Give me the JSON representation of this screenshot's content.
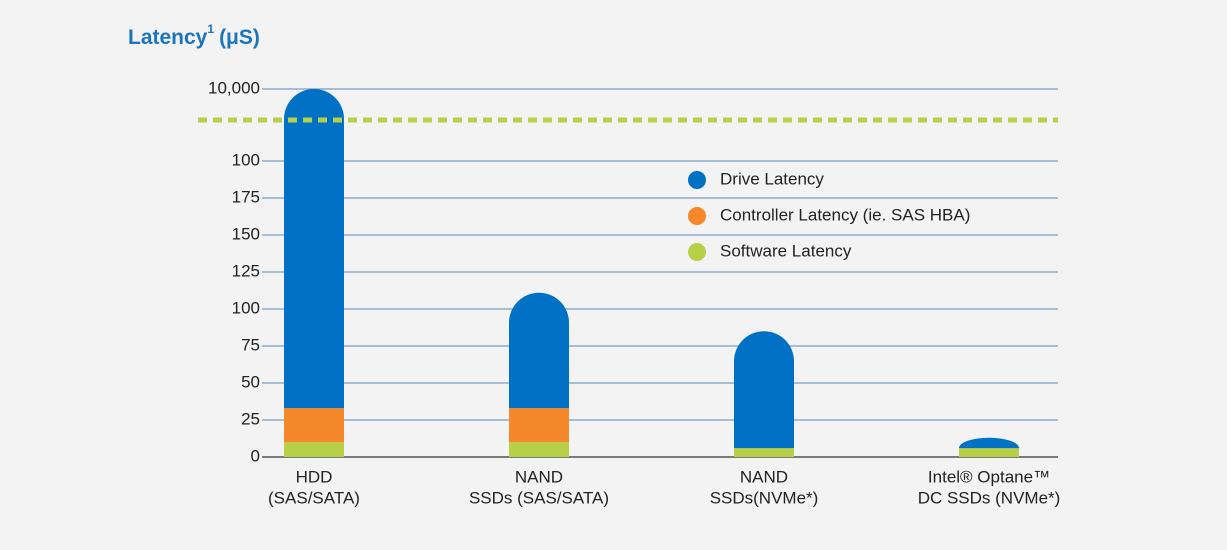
{
  "chart_data": {
    "type": "stacked_bar",
    "title": "Latency",
    "title_footnote": "1",
    "title_unit": "(μS)",
    "categories": [
      [
        "HDD",
        "(SAS/SATA)"
      ],
      [
        "NAND",
        "SSDs (SAS/SATA)"
      ],
      [
        "NAND",
        "SSDs(NVMe*)"
      ],
      [
        "Intel® Optane™",
        "DC SSDs (NVMe*)"
      ]
    ],
    "series": [
      {
        "name": "Drive Latency",
        "color": "#0071c5",
        "values": [
          9970,
          78,
          79,
          7
        ]
      },
      {
        "name": "Controller Latency (ie. SAS HBA)",
        "color": "#f5882a",
        "values": [
          23,
          23,
          0,
          0
        ]
      },
      {
        "name": "Software Latency",
        "color": "#b8cf48",
        "values": [
          10,
          10,
          6,
          6
        ]
      }
    ],
    "ylim": [
      0,
      200
    ],
    "yticks": [
      0,
      25,
      50,
      75,
      100,
      125,
      150,
      175
    ],
    "upper_ylim": [
      100,
      10000
    ],
    "upper_yticks": [
      100,
      {
        "value": 10000,
        "label": "10,000"
      }
    ],
    "upper_log_scale": true,
    "axis_break": true,
    "break_color": "#b8cf48",
    "grid": true,
    "grid_color": "#5a87b8"
  }
}
